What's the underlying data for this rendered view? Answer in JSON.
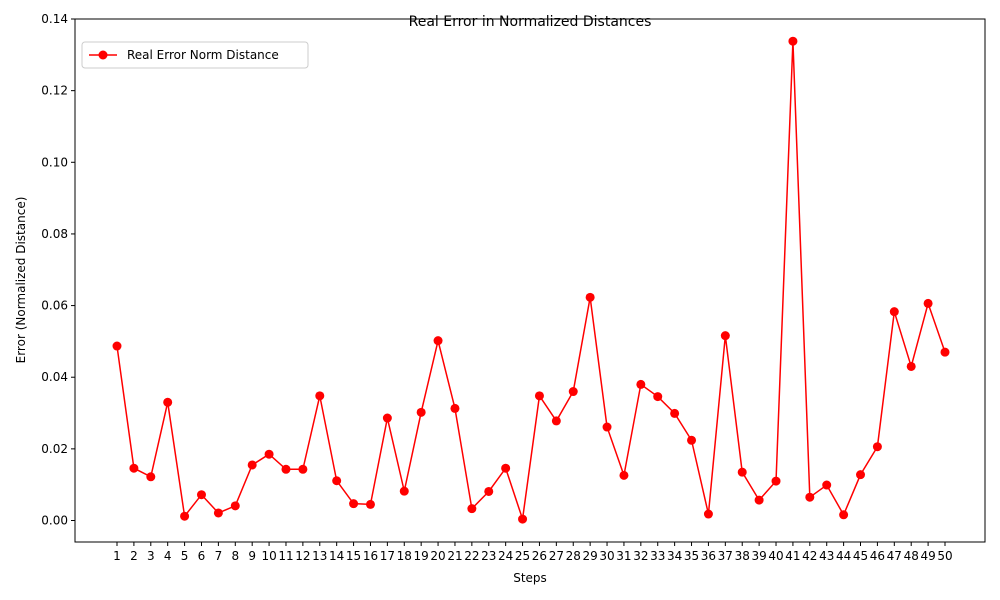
{
  "chart_data": {
    "type": "line",
    "title": "Real Error in Normalized Distances",
    "xlabel": "Steps",
    "ylabel": "Error (Normalized Distance)",
    "x": [
      1,
      2,
      3,
      4,
      5,
      6,
      7,
      8,
      9,
      10,
      11,
      12,
      13,
      14,
      15,
      16,
      17,
      18,
      19,
      20,
      21,
      22,
      23,
      24,
      25,
      26,
      27,
      28,
      29,
      30,
      31,
      32,
      33,
      34,
      35,
      36,
      37,
      38,
      39,
      40,
      41,
      42,
      43,
      44,
      45,
      46,
      47,
      48,
      49,
      50
    ],
    "x_tick_labels": [
      "1",
      "2",
      "3",
      "4",
      "5",
      "6",
      "7",
      "8",
      "9",
      "10",
      "11",
      "12",
      "13",
      "14",
      "15",
      "16",
      "17",
      "18",
      "19",
      "20",
      "21",
      "22",
      "23",
      "24",
      "25",
      "26",
      "27",
      "28",
      "29",
      "30",
      "31",
      "32",
      "33",
      "34",
      "35",
      "36",
      "37",
      "38",
      "39",
      "40",
      "41",
      "42",
      "43",
      "44",
      "45",
      "46",
      "47",
      "48",
      "49",
      "50"
    ],
    "ylim": [
      -0.006,
      0.14
    ],
    "y_ticks": [
      0.0,
      0.02,
      0.04,
      0.06,
      0.08,
      0.1,
      0.12,
      0.14
    ],
    "y_tick_labels": [
      "0.00",
      "0.02",
      "0.04",
      "0.06",
      "0.08",
      "0.10",
      "0.12",
      "0.14"
    ],
    "grid": false,
    "legend_position": "upper-left",
    "series": [
      {
        "name": "Real Error Norm Distance",
        "color": "#ff0000",
        "marker": "circle",
        "values": [
          0.0487,
          0.0146,
          0.0122,
          0.033,
          0.0012,
          0.0072,
          0.0021,
          0.0041,
          0.0155,
          0.0185,
          0.0143,
          0.0143,
          0.0348,
          0.0111,
          0.0047,
          0.0045,
          0.0286,
          0.0082,
          0.0302,
          0.0502,
          0.0313,
          0.0033,
          0.0081,
          0.0146,
          0.0004,
          0.0348,
          0.0278,
          0.036,
          0.0623,
          0.0261,
          0.0126,
          0.038,
          0.0346,
          0.0299,
          0.0224,
          0.0018,
          0.0516,
          0.0135,
          0.0057,
          0.011,
          0.1338,
          0.0065,
          0.0099,
          0.0016,
          0.0128,
          0.0206,
          0.0583,
          0.043,
          0.0606,
          0.047
        ]
      }
    ]
  }
}
